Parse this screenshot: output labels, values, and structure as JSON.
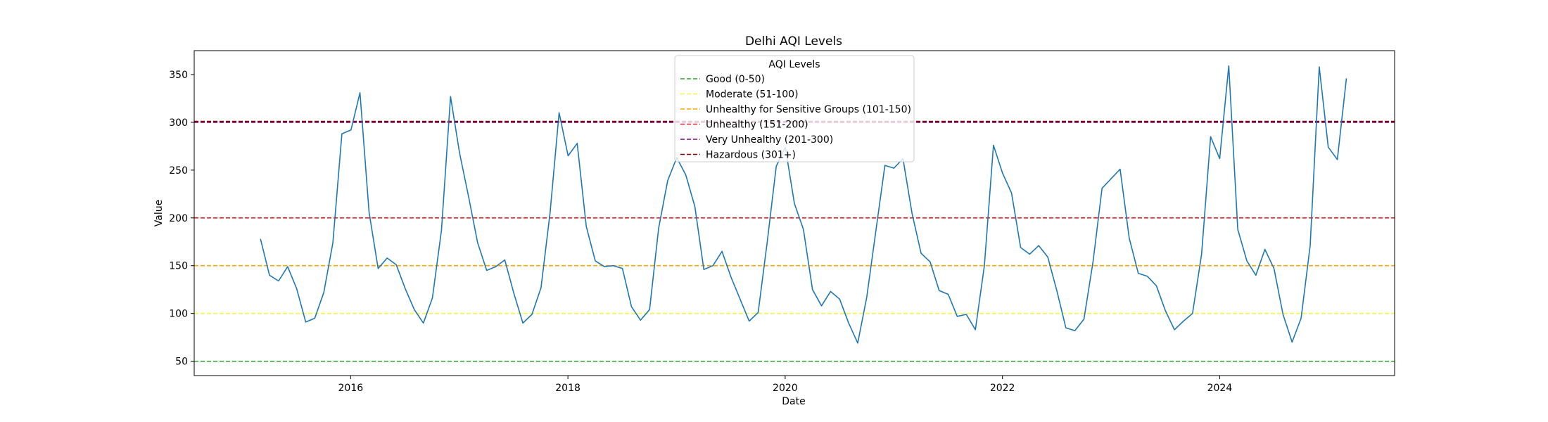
{
  "chart_data": {
    "type": "line",
    "title": "Delhi AQI Levels",
    "xlabel": "Date",
    "ylabel": "Value",
    "xlim": [
      2014.56,
      2025.61
    ],
    "ylim": [
      35,
      375
    ],
    "x_ticks": [
      2016,
      2018,
      2020,
      2022,
      2024
    ],
    "x_tick_labels": [
      "2016",
      "2018",
      "2020",
      "2022",
      "2024"
    ],
    "y_ticks": [
      50,
      100,
      150,
      200,
      250,
      300,
      350
    ],
    "y_tick_labels": [
      "50",
      "100",
      "150",
      "200",
      "250",
      "300",
      "350"
    ],
    "grid": false,
    "series": [
      {
        "name": "AQI",
        "color": "#1f77b4",
        "start": 2015.17,
        "step": 0.0833,
        "values": [
          178,
          140,
          134,
          149,
          126,
          91,
          95,
          122,
          174,
          288,
          292,
          331,
          206,
          147,
          158,
          151,
          126,
          104,
          90,
          116,
          187,
          327,
          268,
          222,
          174,
          145,
          149,
          156,
          121,
          90,
          99,
          127,
          205,
          310,
          265,
          278,
          191,
          155,
          149,
          150,
          147,
          107,
          93,
          104,
          189,
          239,
          263,
          245,
          212,
          146,
          150,
          165,
          138,
          115,
          92,
          101,
          175,
          254,
          274,
          215,
          188,
          125,
          108,
          123,
          115,
          90,
          69,
          117,
          186,
          255,
          252,
          262,
          205,
          163,
          154,
          124,
          120,
          97,
          99,
          83,
          150,
          276,
          247,
          226,
          169,
          162,
          171,
          159,
          124,
          85,
          82,
          94,
          154,
          231,
          241,
          251,
          179,
          142,
          139,
          129,
          103,
          83,
          92,
          100,
          162,
          285,
          262,
          359,
          188,
          155,
          140,
          167,
          147,
          99,
          70,
          95,
          171,
          358,
          274,
          261,
          346
        ]
      }
    ],
    "reference_lines": [
      {
        "label": "Good (0-50)",
        "value": 50,
        "color": "#2ca02c"
      },
      {
        "label": "Moderate (51-100)",
        "value": 100,
        "color": "#f5f542"
      },
      {
        "label": "Unhealthy for Sensitive Groups (101-150)",
        "value": 150,
        "color": "#ffa500"
      },
      {
        "label": "Unhealthy (151-200)",
        "value": 200,
        "color": "#e8222a"
      },
      {
        "label": "Very Unhealthy (201-300)",
        "value": 300,
        "color": "#800080"
      },
      {
        "label": "Hazardous (301+)",
        "value": 301,
        "color": "#800000"
      }
    ],
    "legend": {
      "title": "AQI Levels",
      "position": "upper-center"
    }
  }
}
